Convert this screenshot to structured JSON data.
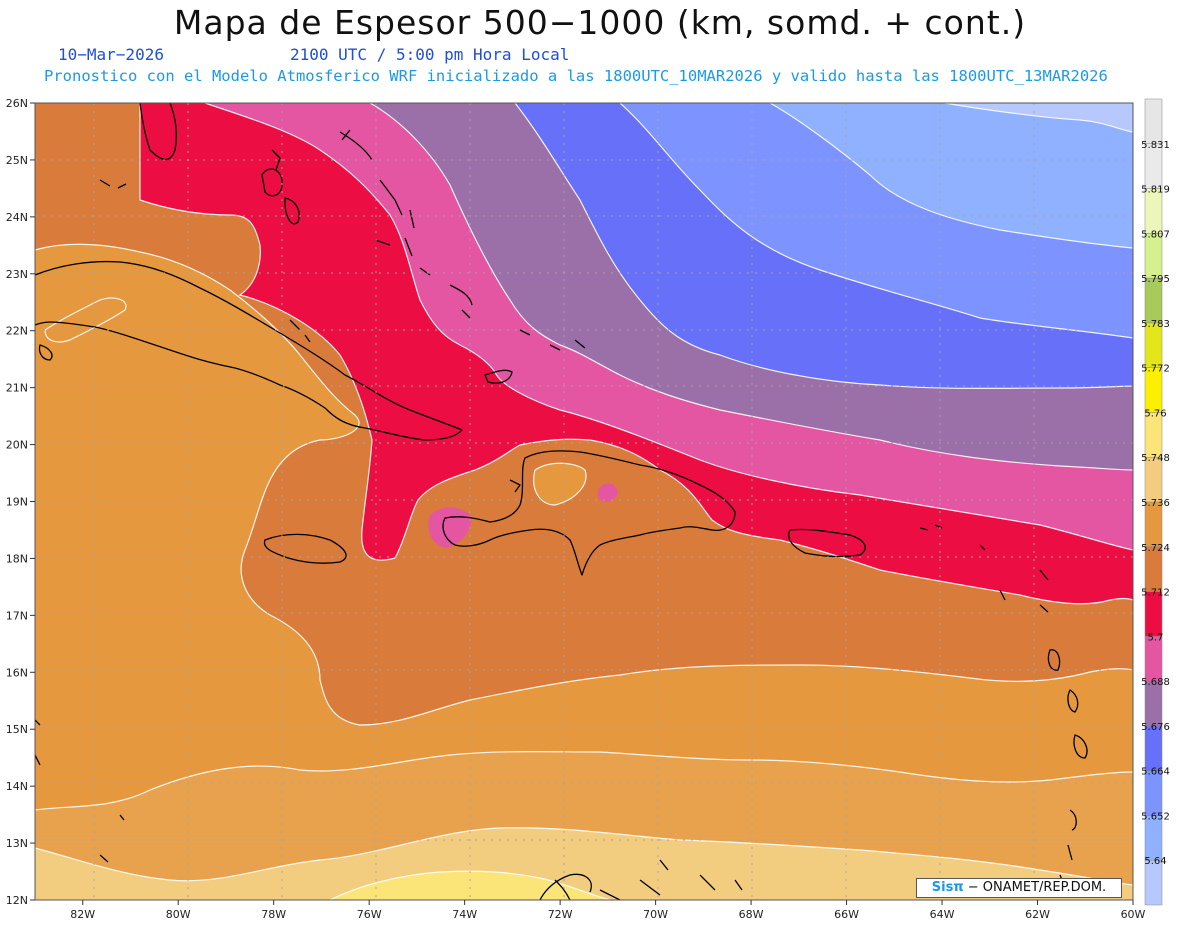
{
  "title": "Mapa de Espesor 500−1000 (km, somd. + cont.)",
  "date_label": "10−Mar−2026",
  "time_label": "2100 UTC / 5:00 pm Hora Local",
  "model_label": "Pronostico con el Modelo Atmosferico WRF inicializado a las 1800UTC_10MAR2026 y valido hasta las  1800UTC_13MAR2026",
  "map": {
    "region": "Caribbean / Greater Antilles",
    "lon_range": [
      -83,
      -60
    ],
    "lat_range": [
      12,
      26
    ],
    "x_ticks": [
      "82W",
      "80W",
      "78W",
      "76W",
      "74W",
      "72W",
      "70W",
      "68W",
      "66W",
      "64W",
      "62W",
      "60W"
    ],
    "y_ticks": [
      "12N",
      "13N",
      "14N",
      "15N",
      "16N",
      "17N",
      "18N",
      "19N",
      "20N",
      "21N",
      "22N",
      "23N",
      "24N",
      "25N",
      "26N"
    ],
    "grid": true
  },
  "colorbar": {
    "labels": [
      "5.64",
      "5.652",
      "5.664",
      "5.676",
      "5.688",
      "5.7",
      "5.712",
      "5.724",
      "5.736",
      "5.748",
      "5.76",
      "5.772",
      "5.783",
      "5.795",
      "5.807",
      "5.819",
      "5.831"
    ],
    "colors": [
      "#b7c8ff",
      "#8fb1ff",
      "#7d93ff",
      "#6670f8",
      "#9b6fa8",
      "#e455a2",
      "#ec0d43",
      "#d97b3a",
      "#e6983f",
      "#f3cd7f",
      "#fbe478",
      "#faf000",
      "#e2e61a",
      "#a8c95c",
      "#d4f08f",
      "#ecf6b9",
      "#eaeaea"
    ]
  },
  "credit": {
    "logo": "Sisπ",
    "text": " − ONAMET/REP.DOM."
  }
}
